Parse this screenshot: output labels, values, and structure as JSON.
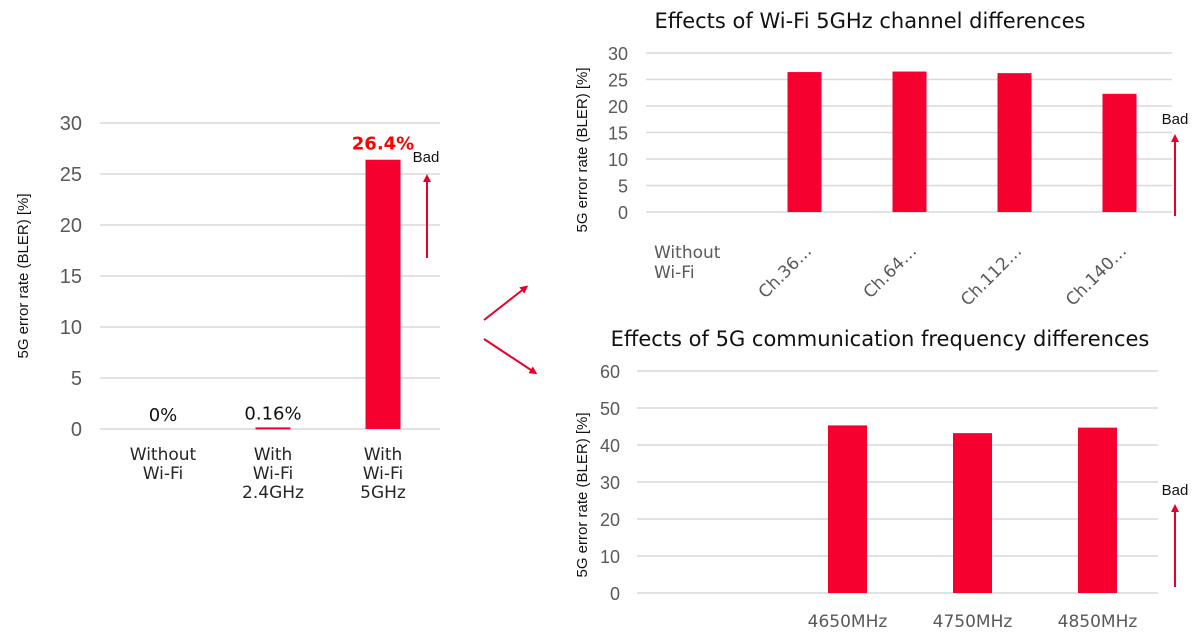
{
  "colors": {
    "bar": "#f5002f",
    "highlight_label": "#ff0000",
    "arrow": "#e8002d",
    "grid": "#d9d9d9"
  },
  "chart_data": [
    {
      "type": "bar",
      "title": "",
      "ylabel": "5G  error rate (BLER) [%]",
      "categories": [
        [
          "Without",
          "Wi-Fi"
        ],
        [
          "With",
          "Wi-Fi",
          "2.4GHz"
        ],
        [
          "With",
          "Wi-Fi",
          "5GHz"
        ]
      ],
      "values": [
        0,
        0.16,
        26.4
      ],
      "data_labels": [
        "0%",
        "0.16%",
        "26.4%"
      ],
      "highlight_label_index": 2,
      "ylim": [
        0,
        30
      ],
      "yticks": [
        0,
        5,
        10,
        15,
        20,
        25,
        30
      ],
      "grid": true,
      "annotation": "Bad"
    },
    {
      "type": "bar",
      "title": "Effects of Wi-Fi 5GHz channel differences",
      "ylabel": "5G  error rate (BLER) [%]",
      "categories": [
        [
          "Without",
          "Wi-Fi"
        ],
        [
          "Ch.36…"
        ],
        [
          "Ch.64…"
        ],
        [
          "Ch.112…"
        ],
        [
          "Ch.140…"
        ]
      ],
      "values": [
        0,
        26.4,
        26.5,
        26.2,
        22.3
      ],
      "ylim": [
        0,
        30
      ],
      "yticks": [
        0,
        5,
        10,
        15,
        20,
        25,
        30
      ],
      "grid": true,
      "annotation": "Bad"
    },
    {
      "type": "bar",
      "title": "Effects of 5G communication frequency differences",
      "ylabel": "5G  error rate (BLER) [%]",
      "categories": [
        [
          ""
        ],
        [
          "4650MHz"
        ],
        [
          "4750MHz"
        ],
        [
          "4850MHz"
        ]
      ],
      "values": [
        0,
        45.3,
        43.2,
        44.7
      ],
      "ylim": [
        0,
        60
      ],
      "yticks": [
        0,
        10,
        20,
        30,
        40,
        50,
        60
      ],
      "grid": true,
      "annotation": "Bad"
    }
  ]
}
